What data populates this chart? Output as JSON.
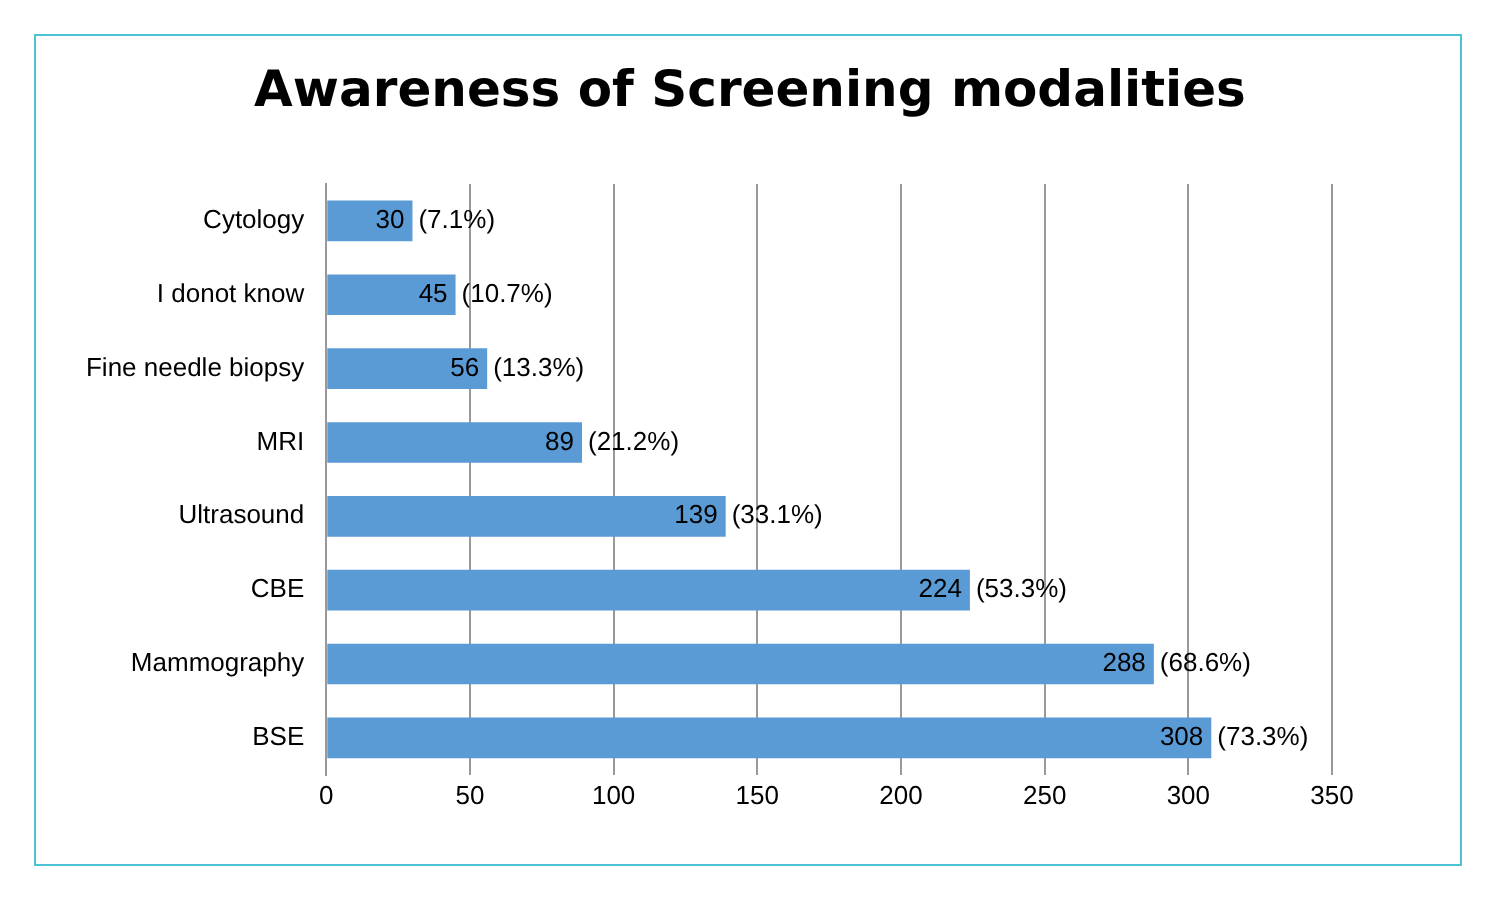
{
  "chart_data": {
    "type": "bar",
    "title": "Awareness of Screening modalities",
    "orientation": "horizontal",
    "categories": [
      "Cytology",
      "I donot know",
      "Fine needle biopsy",
      "MRI",
      "Ultrasound",
      "CBE",
      "Mammography",
      "BSE"
    ],
    "values": [
      30,
      45,
      56,
      89,
      139,
      224,
      288,
      308
    ],
    "color": "#5b9bd5",
    "xlim": [
      0,
      350
    ],
    "xticks": [
      0,
      50,
      100,
      150,
      200,
      250,
      300,
      350
    ],
    "grid": "x",
    "data_labels": true,
    "annotations": [
      {
        "text": "(7.1%)",
        "x": 30,
        "y": "Cytology"
      },
      {
        "text": "(10.7%)",
        "x": 45,
        "y": "I donot know"
      },
      {
        "text": "(13.3%)",
        "x": 56,
        "y": "Fine needle biopsy"
      },
      {
        "text": "(21.2%)",
        "x": 89,
        "y": "MRI"
      },
      {
        "text": "(33.1%)",
        "x": 139,
        "y": "Ultrasound"
      },
      {
        "text": "(53.3%)",
        "x": 224,
        "y": "CBE"
      },
      {
        "text": "(68.6%)",
        "x": 288,
        "y": "Mammography"
      },
      {
        "text": "(73.3%)",
        "x": 308,
        "y": "BSE"
      }
    ]
  }
}
